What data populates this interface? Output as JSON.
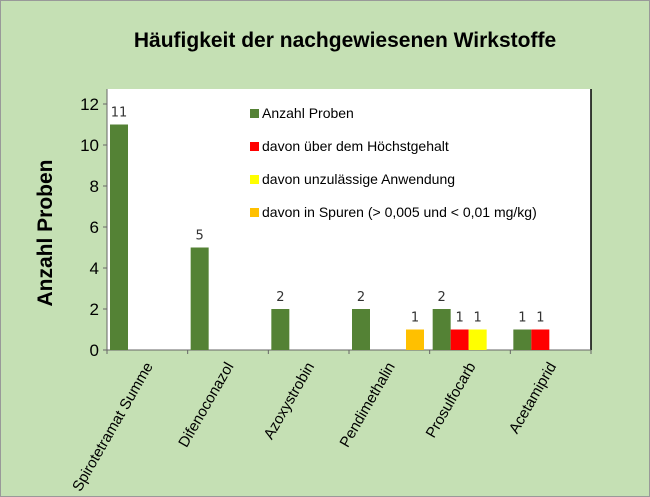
{
  "chart_data": {
    "type": "bar",
    "title": "Häufigkeit der nachgewiesenen Wirkstoffe",
    "xlabel": "",
    "ylabel": "Anzahl Proben",
    "ylim": [
      0,
      12
    ],
    "yticks": [
      "0",
      "2",
      "4",
      "6",
      "8",
      "10",
      "12"
    ],
    "legend_position": "top-right",
    "categories": [
      "Spirotetramat Summe",
      "Difenoconazol",
      "Azoxystrobin",
      "Pendimethalin",
      "Prosulfocarb",
      "Acetamiprid"
    ],
    "series": [
      {
        "name": "Anzahl Proben",
        "color": "#548235",
        "values": [
          11,
          5,
          2,
          2,
          2,
          1
        ]
      },
      {
        "name": "davon über dem Höchstgehalt",
        "color": "#ff0000",
        "values": [
          null,
          null,
          null,
          null,
          1,
          1
        ]
      },
      {
        "name": "davon unzulässige Anwendung",
        "color": "#ffff00",
        "values": [
          null,
          null,
          null,
          null,
          1,
          null
        ]
      },
      {
        "name": "davon in Spuren (> 0,005 und < 0,01 mg/kg)",
        "color": "#ffc000",
        "values": [
          null,
          null,
          null,
          1,
          null,
          null
        ]
      }
    ]
  }
}
